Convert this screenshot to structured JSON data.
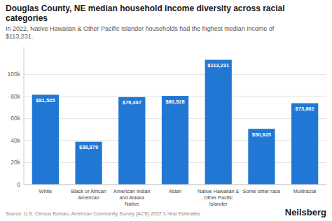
{
  "chart_data": {
    "type": "bar",
    "title": "Douglas County, NE median household income diversity across racial\ncategories",
    "subtitle": "In 2022, Native Hawaiian & Other Pacific Islander households had the highest median income of\n$113,231.",
    "categories": [
      "White",
      "Black or African\nAmerican",
      "American Indian\nand Alaska\nNative",
      "Asian",
      "Native Hawaiian &\nOther Pacific\nIslander",
      "Some other race",
      "Multiracial"
    ],
    "values": [
      81525,
      38879,
      79407,
      80528,
      113231,
      50625,
      73862
    ],
    "value_labels": [
      "$81,525",
      "$38,879",
      "$79,407",
      "$80,528",
      "$113,231",
      "$50,625",
      "$73,862"
    ],
    "data_labels": true,
    "color": "#2178d4",
    "ylim": [
      0,
      125000
    ],
    "yticks": [
      0,
      {
        "value": 20000,
        "label": "20k"
      },
      {
        "value": 40000,
        "label": "40k"
      },
      {
        "value": 60000,
        "label": "60k"
      },
      {
        "value": 80000,
        "label": "80k"
      },
      {
        "value": 100000,
        "label": "100k"
      }
    ],
    "grid": true,
    "annotations": [
      "Source: U.S. Census Bureau, American Community Survey (ACS) 2022 1-Year Estimates",
      "Neilsberg"
    ]
  }
}
